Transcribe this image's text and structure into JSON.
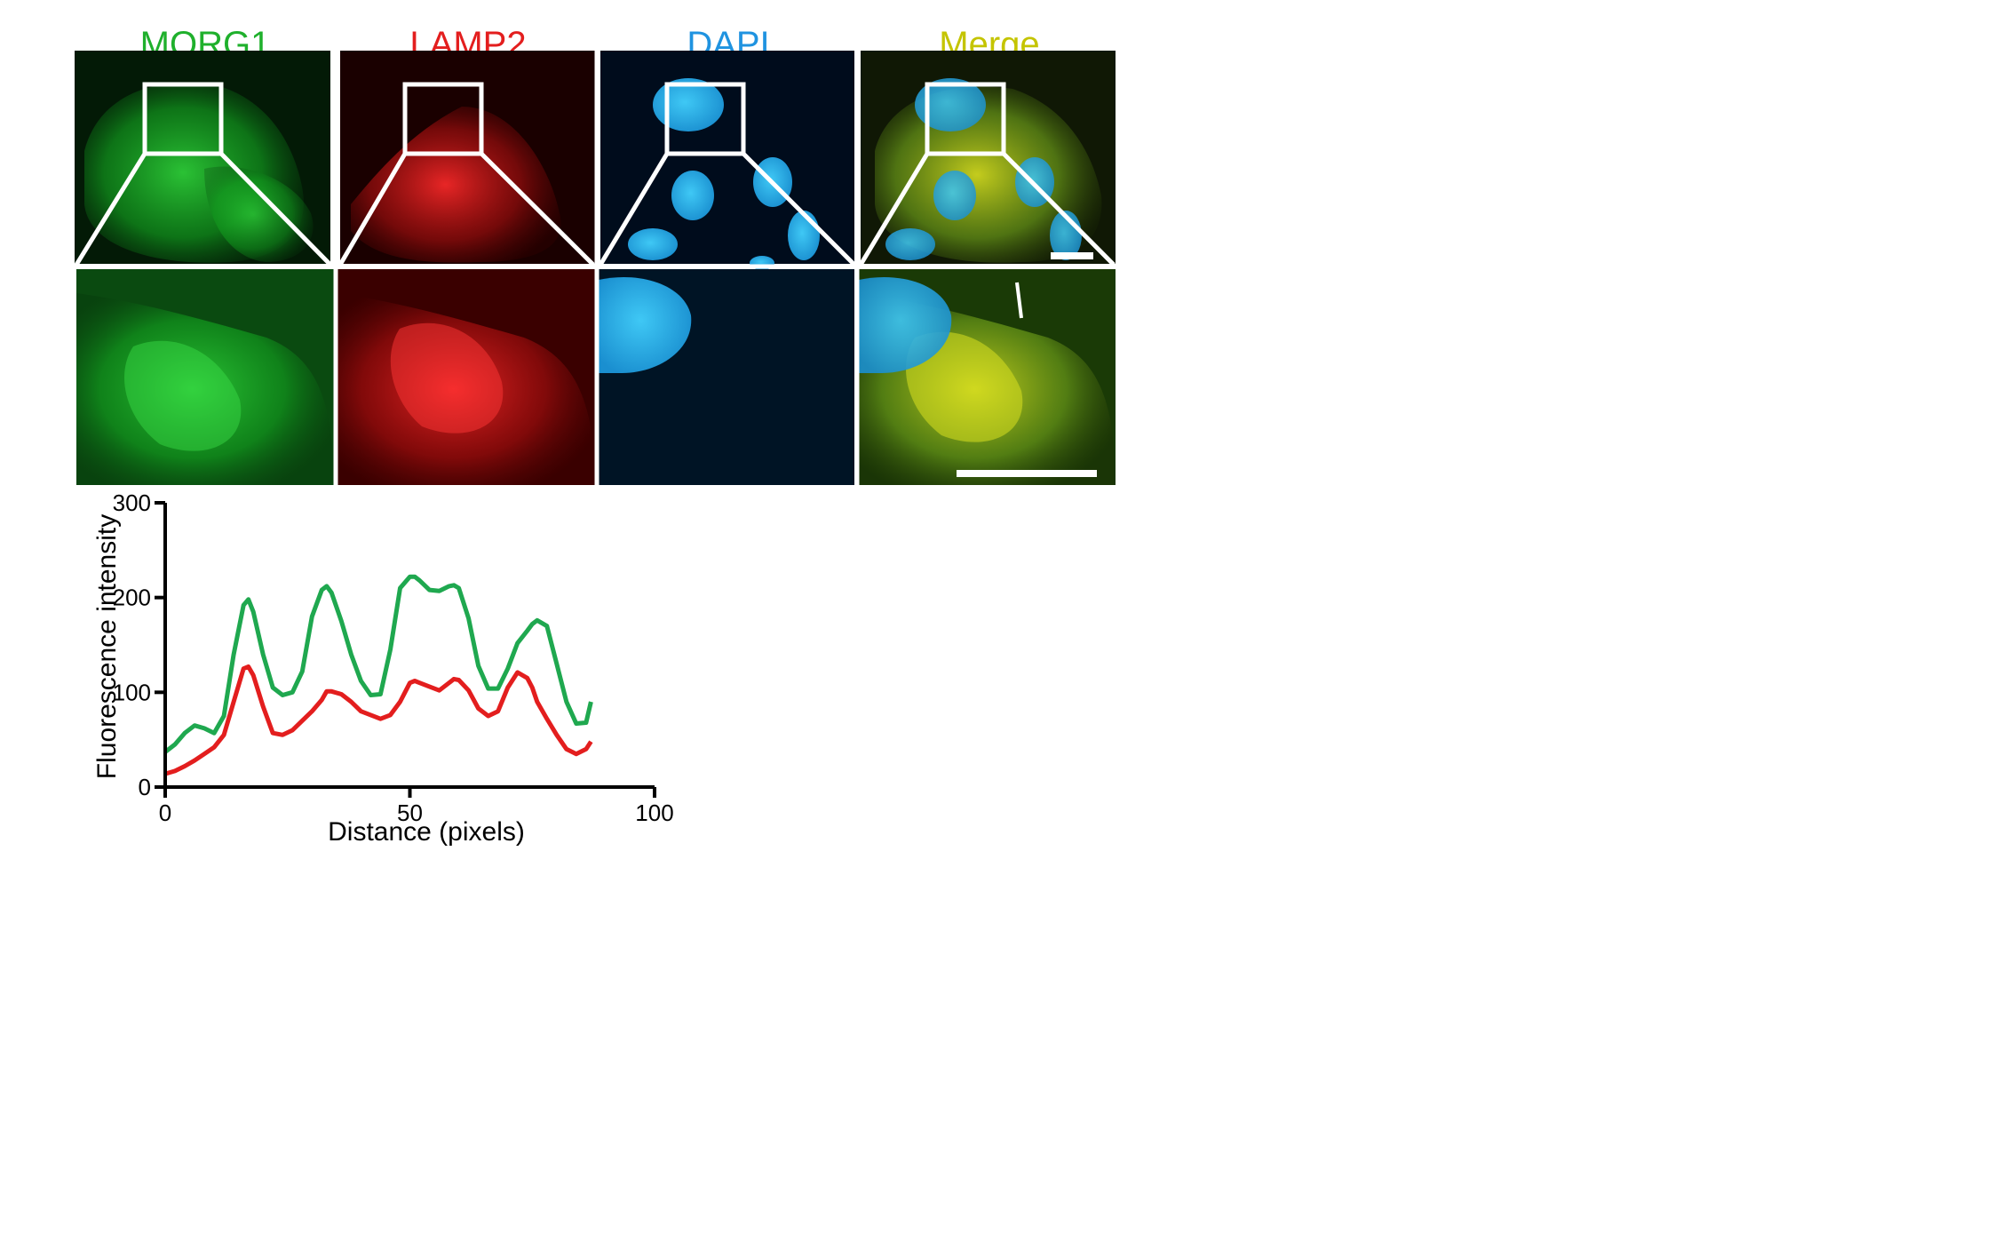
{
  "panel_titles": [
    {
      "label": "MORG1",
      "color": "#1fb02c"
    },
    {
      "label": "LAMP2",
      "color": "#e31e1e"
    },
    {
      "label": "DAPI",
      "color": "#1f93e0"
    },
    {
      "label": "Merge",
      "color": "#c4c400"
    }
  ],
  "channel_colors": {
    "morg1": "#1fb02c",
    "lamp2": "#e31e1e",
    "dapi": "#2cb4e8",
    "merge": "#a9c12a"
  },
  "chart_data": {
    "type": "line",
    "xlabel": "Distance (pixels)",
    "ylabel": "Fluorescence intensity",
    "xlim": [
      0,
      100
    ],
    "ylim": [
      0,
      300
    ],
    "xticks": [
      0,
      50,
      100
    ],
    "yticks": [
      0,
      100,
      200,
      300
    ],
    "grid": false,
    "x": [
      0,
      2,
      4,
      6,
      8,
      10,
      12,
      14,
      16,
      17,
      18,
      20,
      22,
      24,
      26,
      28,
      30,
      32,
      33,
      34,
      36,
      38,
      40,
      42,
      44,
      46,
      48,
      50,
      51,
      52,
      54,
      56,
      58,
      59,
      60,
      62,
      64,
      66,
      68,
      70,
      72,
      74,
      75,
      76,
      78,
      80,
      82,
      84,
      86,
      87
    ],
    "series": [
      {
        "color": "#1fa84f",
        "values": [
          37,
          45,
          57,
          65,
          62,
          57,
          75,
          140,
          192,
          198,
          185,
          140,
          105,
          97,
          100,
          122,
          180,
          208,
          212,
          205,
          175,
          140,
          112,
          97,
          98,
          145,
          210,
          222,
          222,
          218,
          208,
          207,
          212,
          213,
          210,
          178,
          128,
          104,
          104,
          125,
          152,
          165,
          172,
          176,
          170,
          130,
          90,
          67,
          68,
          90
        ]
      },
      {
        "color": "#e31e1e",
        "values": [
          14,
          17,
          22,
          28,
          35,
          42,
          55,
          90,
          125,
          127,
          118,
          85,
          57,
          55,
          60,
          70,
          80,
          92,
          101,
          101,
          98,
          90,
          80,
          76,
          72,
          76,
          90,
          110,
          112,
          110,
          106,
          102,
          110,
          114,
          113,
          102,
          83,
          75,
          80,
          105,
          121,
          115,
          105,
          90,
          72,
          55,
          40,
          35,
          40,
          48
        ]
      }
    ]
  }
}
